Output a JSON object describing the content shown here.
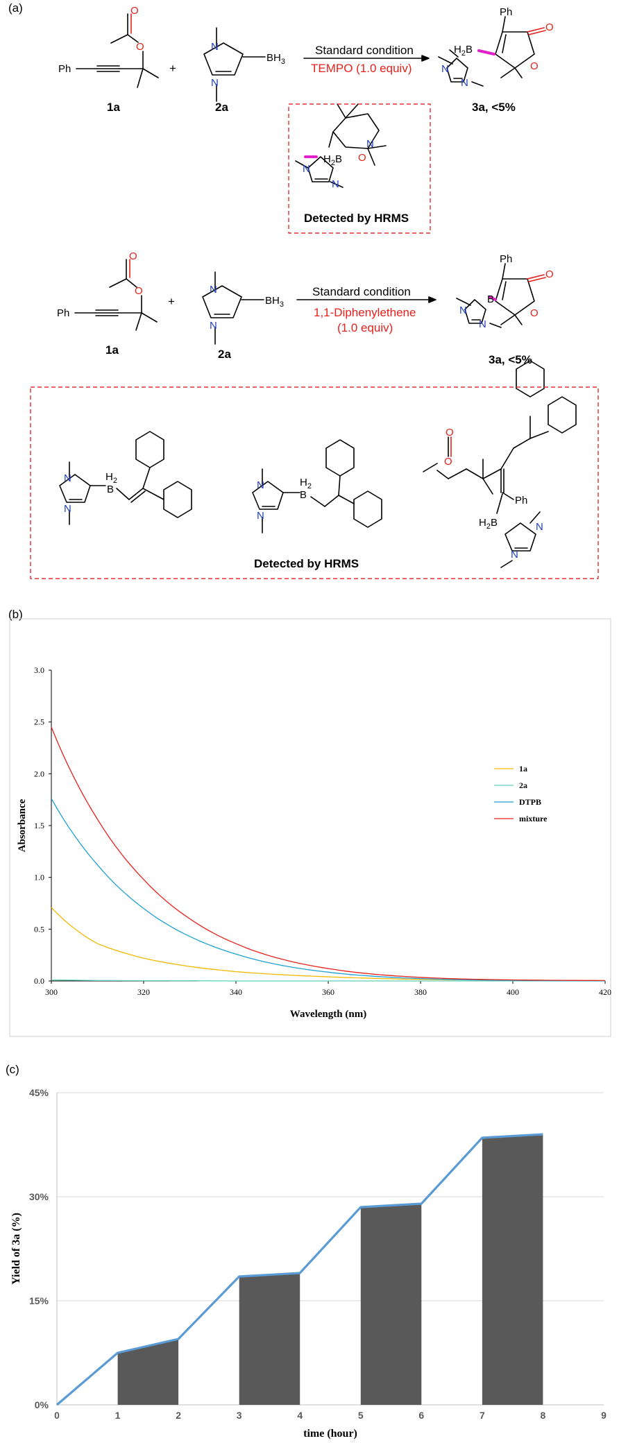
{
  "panels": {
    "a": "(a)",
    "b": "(b)",
    "c": "(c)"
  },
  "scheme1": {
    "reactant1": "1a",
    "reactant2": "2a",
    "plus": "+",
    "arrow_top": "Standard condition",
    "arrow_bottom": "TEMPO  (1.0 equiv)",
    "product": "3a, <5%",
    "box_caption": "Detected by HRMS",
    "ph": "Ph",
    "bh3": "BH",
    "bh3_sub": "3",
    "h2b": "H",
    "h2b_sub": "2",
    "b": "B",
    "o": "O",
    "n": "N"
  },
  "scheme2": {
    "reactant1": "1a",
    "reactant2": "2a",
    "plus": "+",
    "arrow_top": "Standard condition",
    "arrow_bottom_1": "1,1-Diphenylethene",
    "arrow_bottom_2": "(1.0 equiv)",
    "product": "3a, <5%",
    "box_caption": "Detected by HRMS",
    "ph": "Ph"
  },
  "colors": {
    "red": "#e8201c",
    "blue": "#1f3fbf",
    "magenta": "#e020c8",
    "dashed_box": "#e03030",
    "line_1a": "#f2b800",
    "line_2a": "#5fd0b8",
    "line_dtpb": "#1ea0d8",
    "line_mixture": "#e8201c",
    "bar_fill": "#595959",
    "line_yield": "#5b9bd5"
  },
  "chart_data": [
    {
      "type": "line",
      "xlabel": "Wavelength (nm)",
      "ylabel": "Absorbance",
      "xlim": [
        300,
        420
      ],
      "ylim": [
        0,
        3.0
      ],
      "x_ticks": [
        "300",
        "320",
        "340",
        "360",
        "380",
        "400",
        "420"
      ],
      "y_ticks": [
        "0.0",
        "0.5",
        "1.0",
        "1.5",
        "2.0",
        "2.5",
        "3.0"
      ],
      "legend_position": "right",
      "grid": false,
      "x": [
        300,
        310,
        320,
        330,
        340,
        350,
        360,
        370,
        380,
        390,
        400,
        410,
        420
      ],
      "series": [
        {
          "name": "1a",
          "values": [
            0.71,
            0.36,
            0.22,
            0.14,
            0.09,
            0.06,
            0.04,
            0.025,
            0.015,
            0.01,
            0.007,
            0.004,
            0.003
          ]
        },
        {
          "name": "2a",
          "values": [
            0.01,
            0.005,
            0.003,
            0.002,
            0.0,
            0.0,
            0.0,
            0.0,
            0.0,
            0.0,
            0.0,
            0.0,
            0.0
          ]
        },
        {
          "name": "DTPB",
          "values": [
            1.76,
            1.12,
            0.7,
            0.43,
            0.26,
            0.15,
            0.085,
            0.045,
            0.023,
            0.011,
            0.006,
            0.003,
            0.002
          ]
        },
        {
          "name": "mixture",
          "values": [
            2.45,
            1.56,
            0.98,
            0.6,
            0.36,
            0.21,
            0.12,
            0.065,
            0.035,
            0.018,
            0.01,
            0.006,
            0.004
          ]
        }
      ]
    },
    {
      "type": "bar",
      "xlabel": "time (hour)",
      "ylabel": "Yield of 3a (%)",
      "xlim": [
        0,
        9
      ],
      "ylim": [
        0,
        45
      ],
      "x_ticks": [
        "0",
        "1",
        "2",
        "3",
        "4",
        "5",
        "6",
        "7",
        "8",
        "9"
      ],
      "y_ticks": [
        "0%",
        "15%",
        "30%",
        "45%"
      ],
      "grid": true,
      "line_x": [
        0,
        1,
        2,
        3,
        4,
        5,
        6,
        7,
        8
      ],
      "line_values": [
        0,
        7.5,
        9.5,
        18.5,
        19.0,
        28.5,
        29.0,
        38.5,
        39.0
      ],
      "bars": [
        {
          "from": 1,
          "to": 2,
          "values": [
            7.5,
            9.5
          ]
        },
        {
          "from": 3,
          "to": 4,
          "values": [
            18.5,
            19.0
          ]
        },
        {
          "from": 5,
          "to": 6,
          "values": [
            28.5,
            29.0
          ]
        },
        {
          "from": 7,
          "to": 8,
          "values": [
            38.5,
            39.0
          ]
        }
      ]
    }
  ]
}
